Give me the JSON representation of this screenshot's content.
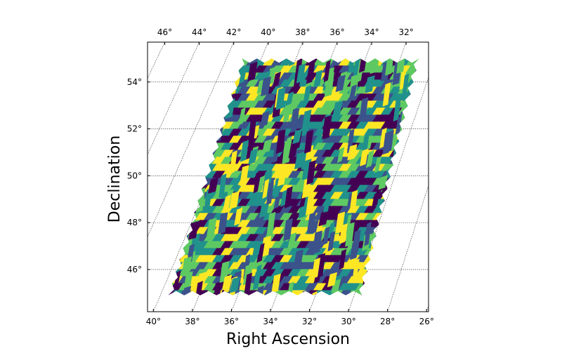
{
  "chart_data": {
    "type": "heatmap",
    "xlabel": "Right Ascension",
    "ylabel": "Declination",
    "bottom_ticks": [
      "40°",
      "38°",
      "36°",
      "34°",
      "32°",
      "30°",
      "28°",
      "26°"
    ],
    "top_ticks": [
      "46°",
      "44°",
      "42°",
      "40°",
      "38°",
      "36°",
      "34°",
      "32°"
    ],
    "left_ticks": [
      "46°",
      "48°",
      "50°",
      "52°",
      "54°"
    ],
    "bottom_tick_values": [
      40,
      38,
      36,
      34,
      32,
      30,
      28,
      26
    ],
    "top_tick_values": [
      46,
      44,
      42,
      40,
      38,
      36,
      34,
      32
    ],
    "dec_tick_values": [
      46,
      48,
      50,
      52,
      54
    ],
    "bottom_ra_range": [
      40.3,
      25.9
    ],
    "top_ra_range": [
      47.0,
      30.7
    ],
    "dec_range": [
      44.2,
      55.7
    ],
    "footprint_corners_radec": {
      "bottom_left": [
        39.6,
        44.9
      ],
      "bottom_right": [
        29.6,
        44.9
      ],
      "top_left": [
        41.1,
        55.0
      ],
      "top_right": [
        30.9,
        55.0
      ]
    },
    "colormap": "viridis",
    "colors": [
      "#440154",
      "#3b528b",
      "#21918c",
      "#5ec962",
      "#fde725"
    ],
    "grid": true
  }
}
